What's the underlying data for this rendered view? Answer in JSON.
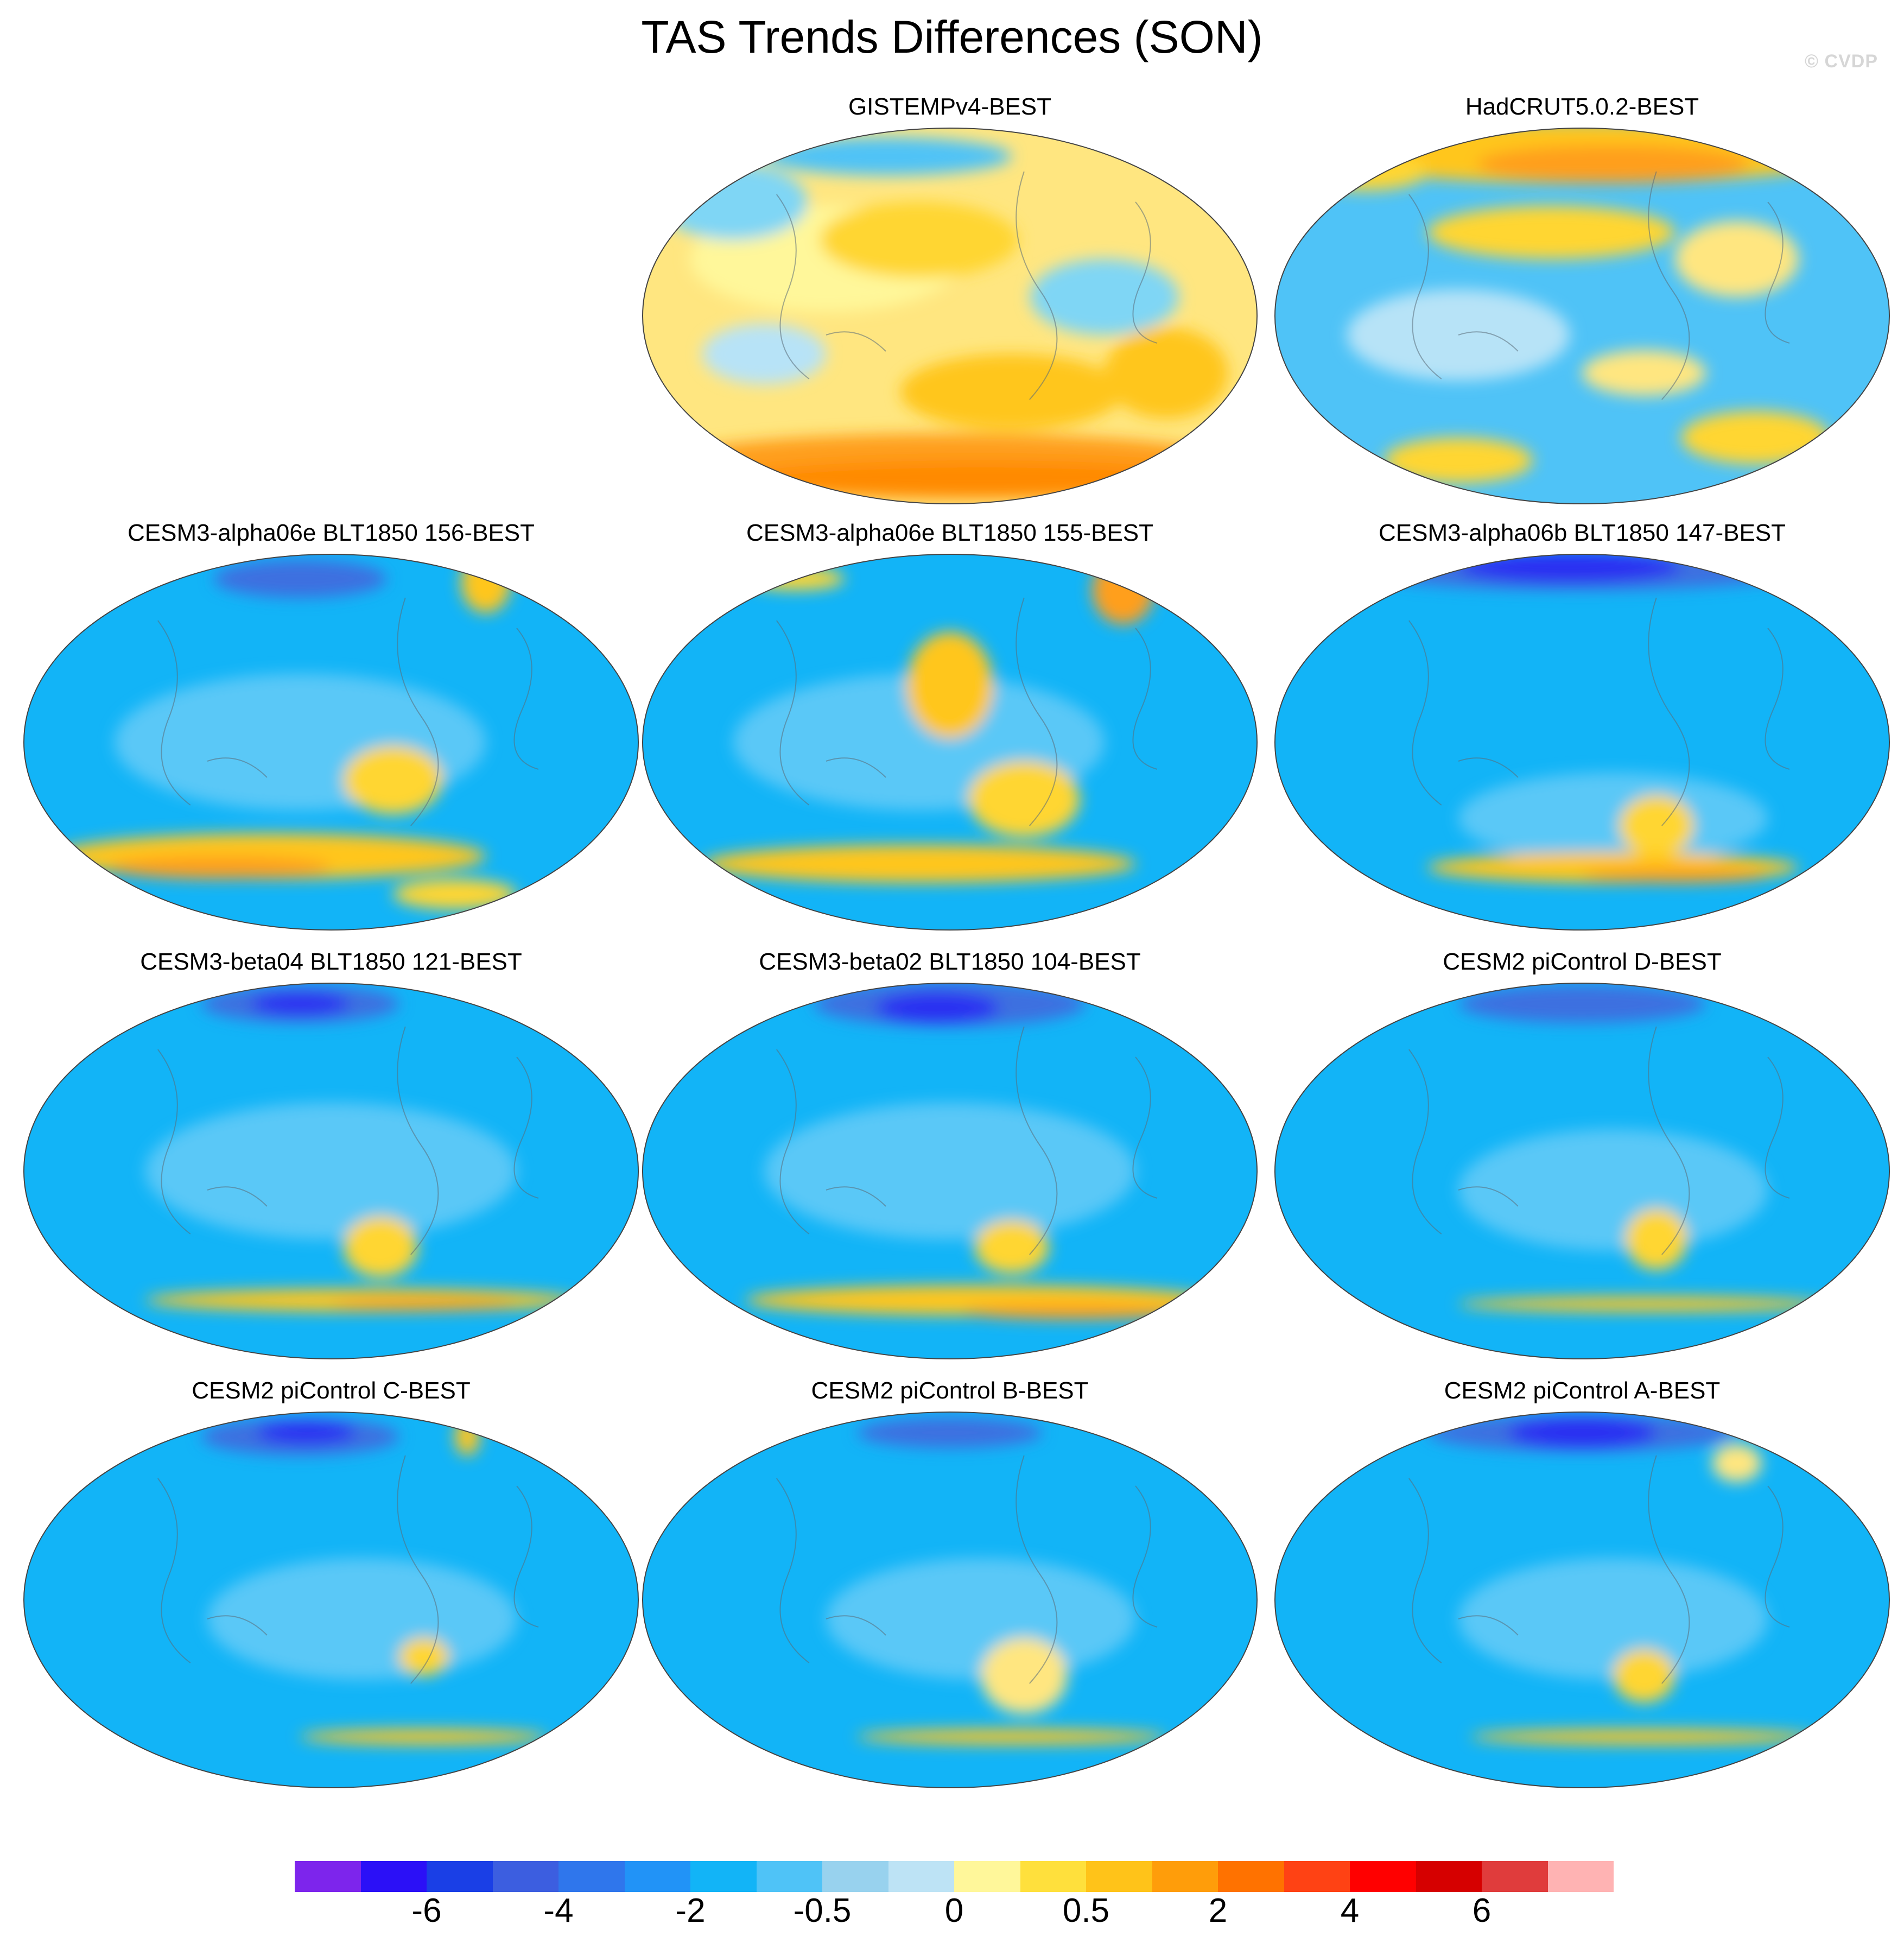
{
  "title": "TAS Trends Differences (SON)",
  "watermark": "© CVDP",
  "panels": [
    {
      "id": "gistemp",
      "title": "GISTEMPv4-BEST",
      "base": "#ffe680",
      "blobs": [
        {
          "c": "#fff79a",
          "shape": [
            0.3,
            0.35,
            0.22,
            0.14
          ]
        },
        {
          "c": "#ffd633",
          "shape": [
            0.45,
            0.3,
            0.16,
            0.1
          ]
        },
        {
          "c": "#7fd6f5",
          "shape": [
            0.15,
            0.2,
            0.12,
            0.1
          ]
        },
        {
          "c": "#7fd6f5",
          "shape": [
            0.75,
            0.45,
            0.12,
            0.1
          ]
        },
        {
          "c": "#ffc61a",
          "shape": [
            0.6,
            0.7,
            0.18,
            0.1
          ]
        },
        {
          "c": "#ff9f1a",
          "shape": [
            0.5,
            0.88,
            0.45,
            0.07
          ]
        },
        {
          "c": "#ff8a00",
          "shape": [
            0.55,
            0.93,
            0.4,
            0.05
          ]
        },
        {
          "c": "#b7e3f7",
          "shape": [
            0.2,
            0.6,
            0.1,
            0.08
          ]
        },
        {
          "c": "#ffc61a",
          "shape": [
            0.85,
            0.65,
            0.1,
            0.12
          ]
        },
        {
          "c": "#4fc3f7",
          "shape": [
            0.4,
            0.08,
            0.2,
            0.05
          ]
        }
      ]
    },
    {
      "id": "hadcrut",
      "title": "HadCRUT5.0.2-BEST",
      "base": "#4fc3f7",
      "blobs": [
        {
          "c": "#ffc61a",
          "shape": [
            0.5,
            0.07,
            0.45,
            0.08
          ]
        },
        {
          "c": "#ff9f1a",
          "shape": [
            0.55,
            0.1,
            0.22,
            0.05
          ]
        },
        {
          "c": "#ffd633",
          "shape": [
            0.45,
            0.28,
            0.2,
            0.07
          ]
        },
        {
          "c": "#ffe680",
          "shape": [
            0.75,
            0.35,
            0.1,
            0.1
          ]
        },
        {
          "c": "#b7e3f7",
          "shape": [
            0.3,
            0.55,
            0.18,
            0.12
          ]
        },
        {
          "c": "#ffd633",
          "shape": [
            0.78,
            0.82,
            0.12,
            0.07
          ]
        },
        {
          "c": "#ffd633",
          "shape": [
            0.3,
            0.88,
            0.12,
            0.06
          ]
        },
        {
          "c": "#ffe680",
          "shape": [
            0.6,
            0.65,
            0.1,
            0.06
          ]
        },
        {
          "c": "#ffd633",
          "shape": [
            0.15,
            0.12,
            0.1,
            0.05
          ]
        }
      ]
    },
    {
      "id": "cesm3-156",
      "title": "CESM3-alpha06e BLT1850 156-BEST",
      "base": "#12b4f7",
      "blobs": [
        {
          "c": "#5ac8f7",
          "shape": [
            0.45,
            0.5,
            0.3,
            0.18
          ]
        },
        {
          "c": "#3c6fe0",
          "shape": [
            0.45,
            0.07,
            0.14,
            0.05
          ]
        },
        {
          "c": "#ffd633",
          "shape": [
            0.6,
            0.6,
            0.08,
            0.09
          ]
        },
        {
          "c": "#ffc61a",
          "shape": [
            0.4,
            0.8,
            0.35,
            0.06
          ]
        },
        {
          "c": "#ff9f1a",
          "shape": [
            0.32,
            0.83,
            0.18,
            0.03
          ]
        },
        {
          "c": "#ffc61a",
          "shape": [
            0.75,
            0.08,
            0.04,
            0.08
          ]
        },
        {
          "c": "#ffd633",
          "shape": [
            0.7,
            0.9,
            0.1,
            0.04
          ]
        }
      ]
    },
    {
      "id": "cesm3-155",
      "title": "CESM3-alpha06e BLT1850 155-BEST",
      "base": "#12b4f7",
      "blobs": [
        {
          "c": "#5ac8f7",
          "shape": [
            0.45,
            0.5,
            0.3,
            0.18
          ]
        },
        {
          "c": "#ffc61a",
          "shape": [
            0.5,
            0.35,
            0.07,
            0.14
          ]
        },
        {
          "c": "#ffd633",
          "shape": [
            0.62,
            0.65,
            0.09,
            0.1
          ]
        },
        {
          "c": "#ffc61a",
          "shape": [
            0.45,
            0.82,
            0.35,
            0.05
          ]
        },
        {
          "c": "#ff9f1a",
          "shape": [
            0.78,
            0.1,
            0.05,
            0.09
          ]
        },
        {
          "c": "#ffd633",
          "shape": [
            0.25,
            0.07,
            0.08,
            0.03
          ]
        }
      ]
    },
    {
      "id": "cesm3-147",
      "title": "CESM3-alpha06b BLT1850 147-BEST",
      "base": "#12b4f7",
      "blobs": [
        {
          "c": "#3c6fe0",
          "shape": [
            0.5,
            0.05,
            0.35,
            0.05
          ]
        },
        {
          "c": "#2b2ff2",
          "shape": [
            0.48,
            0.04,
            0.18,
            0.04
          ]
        },
        {
          "c": "#5ac8f7",
          "shape": [
            0.55,
            0.7,
            0.25,
            0.12
          ]
        },
        {
          "c": "#ffd633",
          "shape": [
            0.62,
            0.72,
            0.06,
            0.08
          ]
        },
        {
          "c": "#ffc61a",
          "shape": [
            0.55,
            0.83,
            0.3,
            0.04
          ]
        },
        {
          "c": "#ff9f1a",
          "shape": [
            0.65,
            0.85,
            0.15,
            0.02
          ]
        }
      ]
    },
    {
      "id": "cesm3-beta04",
      "title": "CESM3-beta04 BLT1850 121-BEST",
      "base": "#12b4f7",
      "blobs": [
        {
          "c": "#3c6fe0",
          "shape": [
            0.45,
            0.06,
            0.16,
            0.05
          ]
        },
        {
          "c": "#2b2ff2",
          "shape": [
            0.45,
            0.06,
            0.08,
            0.03
          ]
        },
        {
          "c": "#5ac8f7",
          "shape": [
            0.5,
            0.5,
            0.3,
            0.18
          ]
        },
        {
          "c": "#ffd633",
          "shape": [
            0.58,
            0.7,
            0.06,
            0.08
          ]
        },
        {
          "c": "#ffc61a",
          "shape": [
            0.55,
            0.84,
            0.35,
            0.03
          ]
        },
        {
          "c": "#ff9f1a",
          "shape": [
            0.65,
            0.85,
            0.15,
            0.015
          ]
        }
      ]
    },
    {
      "id": "cesm3-beta02",
      "title": "CESM3-beta02 BLT1850 104-BEST",
      "base": "#12b4f7",
      "blobs": [
        {
          "c": "#3c6fe0",
          "shape": [
            0.5,
            0.06,
            0.22,
            0.06
          ]
        },
        {
          "c": "#2b2ff2",
          "shape": [
            0.48,
            0.07,
            0.1,
            0.04
          ]
        },
        {
          "c": "#5ac8f7",
          "shape": [
            0.5,
            0.5,
            0.3,
            0.18
          ]
        },
        {
          "c": "#ffd633",
          "shape": [
            0.6,
            0.7,
            0.06,
            0.07
          ]
        },
        {
          "c": "#ffc61a",
          "shape": [
            0.55,
            0.84,
            0.38,
            0.04
          ]
        },
        {
          "c": "#ff9f1a",
          "shape": [
            0.7,
            0.87,
            0.18,
            0.02
          ]
        }
      ]
    },
    {
      "id": "cesm2-d",
      "title": "CESM2 piControl D-BEST",
      "base": "#12b4f7",
      "blobs": [
        {
          "c": "#3c6fe0",
          "shape": [
            0.5,
            0.06,
            0.2,
            0.05
          ]
        },
        {
          "c": "#5ac8f7",
          "shape": [
            0.55,
            0.55,
            0.25,
            0.16
          ]
        },
        {
          "c": "#ffd633",
          "shape": [
            0.62,
            0.68,
            0.05,
            0.08
          ]
        },
        {
          "c": "#ffc61a",
          "shape": [
            0.6,
            0.85,
            0.3,
            0.02
          ]
        }
      ]
    },
    {
      "id": "cesm2-c",
      "title": "CESM2 piControl C-BEST",
      "base": "#12b4f7",
      "blobs": [
        {
          "c": "#3c6fe0",
          "shape": [
            0.45,
            0.07,
            0.16,
            0.05
          ]
        },
        {
          "c": "#2b2ff2",
          "shape": [
            0.46,
            0.06,
            0.08,
            0.03
          ]
        },
        {
          "c": "#5ac8f7",
          "shape": [
            0.55,
            0.55,
            0.25,
            0.16
          ]
        },
        {
          "c": "#ffd633",
          "shape": [
            0.65,
            0.65,
            0.04,
            0.05
          ]
        },
        {
          "c": "#ffc61a",
          "shape": [
            0.65,
            0.86,
            0.2,
            0.02
          ]
        },
        {
          "c": "#ffc61a",
          "shape": [
            0.72,
            0.07,
            0.02,
            0.05
          ]
        }
      ]
    },
    {
      "id": "cesm2-b",
      "title": "CESM2 piControl B-BEST",
      "base": "#12b4f7",
      "blobs": [
        {
          "c": "#3c6fe0",
          "shape": [
            0.5,
            0.06,
            0.15,
            0.04
          ]
        },
        {
          "c": "#5ac8f7",
          "shape": [
            0.55,
            0.55,
            0.25,
            0.16
          ]
        },
        {
          "c": "#ffe680",
          "shape": [
            0.62,
            0.7,
            0.07,
            0.1
          ]
        },
        {
          "c": "#ffc61a",
          "shape": [
            0.6,
            0.86,
            0.25,
            0.02
          ]
        }
      ]
    },
    {
      "id": "cesm2-a",
      "title": "CESM2 piControl A-BEST",
      "base": "#12b4f7",
      "blobs": [
        {
          "c": "#3c6fe0",
          "shape": [
            0.5,
            0.06,
            0.25,
            0.05
          ]
        },
        {
          "c": "#2b2ff2",
          "shape": [
            0.5,
            0.06,
            0.12,
            0.04
          ]
        },
        {
          "c": "#5ac8f7",
          "shape": [
            0.55,
            0.55,
            0.25,
            0.16
          ]
        },
        {
          "c": "#ffd633",
          "shape": [
            0.6,
            0.7,
            0.05,
            0.07
          ]
        },
        {
          "c": "#ffc61a",
          "shape": [
            0.6,
            0.86,
            0.28,
            0.02
          ]
        },
        {
          "c": "#ffe680",
          "shape": [
            0.75,
            0.14,
            0.04,
            0.05
          ]
        }
      ]
    }
  ],
  "colorbar": {
    "colors": [
      "#7d25ec",
      "#2b10f7",
      "#1a3fe6",
      "#3c5ee0",
      "#2f76ec",
      "#2193f7",
      "#12b4f7",
      "#4fc3f7",
      "#98d2ee",
      "#bde3f5",
      "#fff79a",
      "#ffe03c",
      "#ffc319",
      "#ff9d0a",
      "#ff7200",
      "#ff4214",
      "#ff0000",
      "#d60000",
      "#e03c3c",
      "#ffb3b3"
    ],
    "labels": [
      "-6",
      "-4",
      "-2",
      "-0.5",
      "0",
      "0.5",
      "2",
      "4",
      "6"
    ]
  }
}
